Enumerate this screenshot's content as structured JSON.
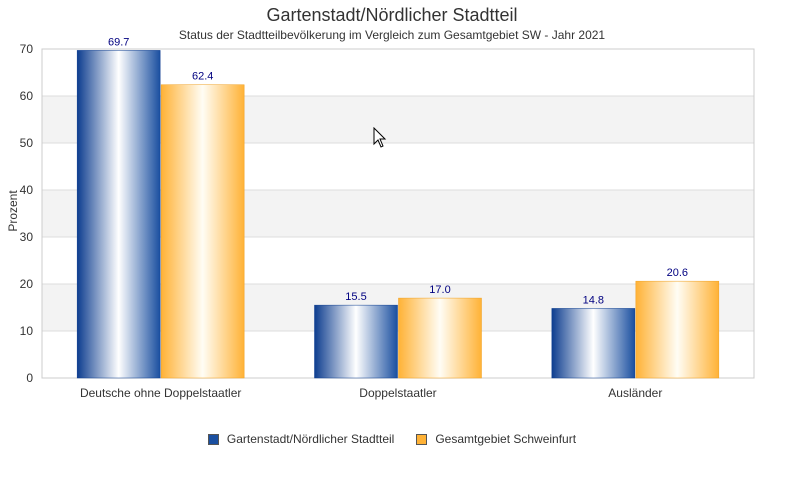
{
  "chart_data": {
    "type": "bar",
    "title": "Gartenstadt/Nördlicher Stadtteil",
    "subtitle": "Status der Stadtteilbevölkerung im Vergleich zum Gesamtgebiet SW - Jahr 2021",
    "ylabel": "Prozent",
    "xlabel": "",
    "ylim": [
      0,
      70
    ],
    "yticks": [
      0,
      10,
      20,
      30,
      40,
      50,
      60,
      70
    ],
    "grid": true,
    "legend_position": "bottom",
    "categories": [
      "Deutsche ohne Doppelstaatler",
      "Doppelstaatler",
      "Ausländer"
    ],
    "series": [
      {
        "name": "Gartenstadt/Nördlicher Stadtteil",
        "values": [
          69.7,
          15.5,
          14.8
        ],
        "color": "#1a4fa0"
      },
      {
        "name": "Gesamtgebiet Schweinfurt",
        "values": [
          62.4,
          17.0,
          20.6
        ],
        "color": "#ffb236"
      }
    ],
    "data_labels": [
      [
        "69.7",
        "15.5",
        "14.8"
      ],
      [
        "62.4",
        "17.0",
        "20.6"
      ]
    ]
  }
}
